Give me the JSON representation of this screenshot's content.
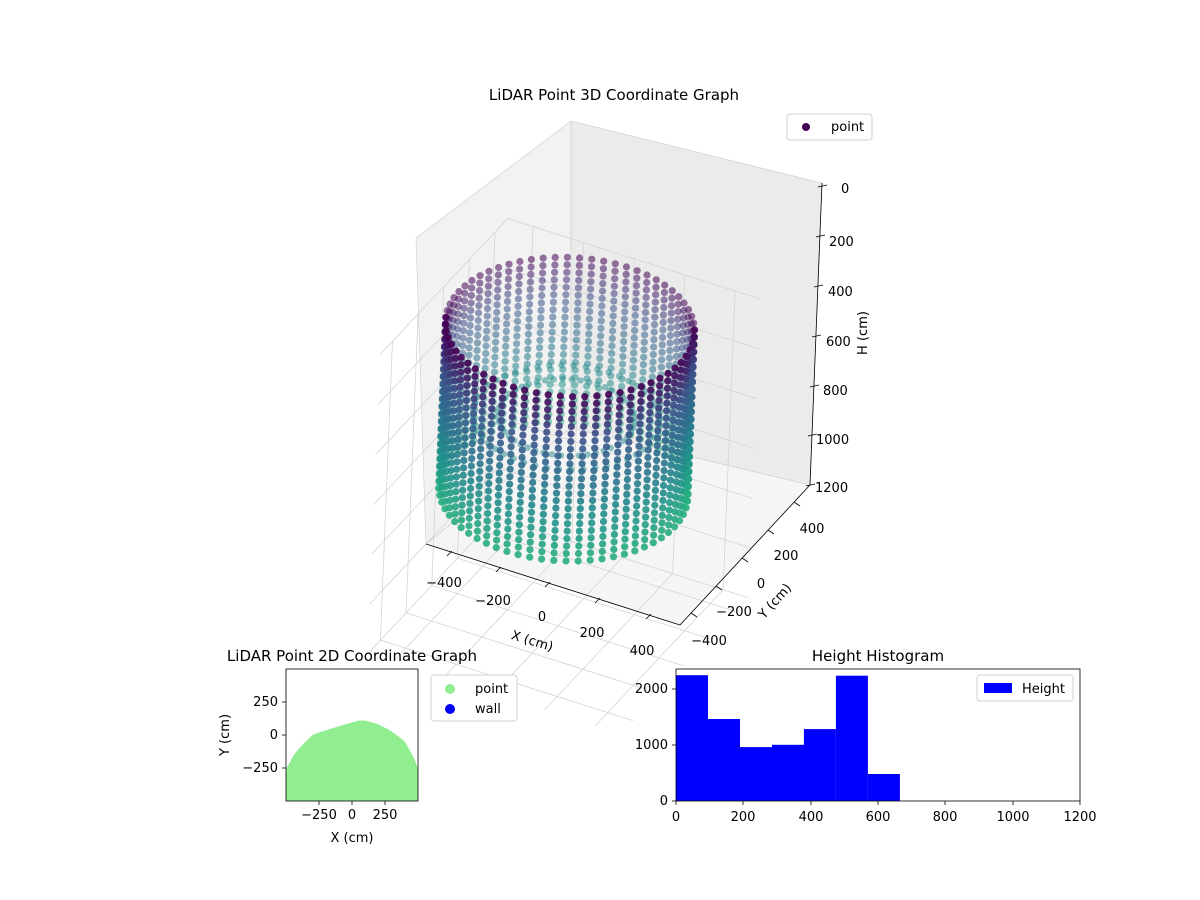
{
  "chart_data": [
    {
      "type": "scatter",
      "projection": "3d",
      "title": "LiDAR Point 3D Coordinate Graph",
      "xlabel": "X (cm)",
      "ylabel": "Y (cm)",
      "zlabel": "H (cm)",
      "xlim": [
        -500,
        500
      ],
      "ylim": [
        -500,
        500
      ],
      "zlim": [
        0,
        1200
      ],
      "z_inverted": true,
      "x_ticks": [
        "−400",
        "−200",
        "0",
        "200",
        "400"
      ],
      "y_ticks": [
        "−400",
        "−200",
        "0",
        "200",
        "400"
      ],
      "z_ticks": [
        "0",
        "200",
        "400",
        "600",
        "800",
        "1000",
        "1200"
      ],
      "legend": [
        "point"
      ],
      "legend_position": "top-right",
      "grid": true,
      "colormap": "viridis",
      "series": [
        {
          "name": "point",
          "shape": "cylindrical wall of points",
          "center": [
            0,
            0
          ],
          "radius": 440,
          "height_range": [
            0,
            660
          ],
          "color": "#440154"
        }
      ]
    },
    {
      "type": "scatter",
      "title": "LiDAR Point 2D Coordinate Graph",
      "xlabel": "X (cm)",
      "ylabel": "Y (cm)",
      "xlim": [
        -500,
        500
      ],
      "ylim": [
        -500,
        500
      ],
      "x_ticks": [
        "−250",
        "0",
        "250"
      ],
      "y_ticks": [
        "250",
        "0",
        "−250"
      ],
      "legend": [
        "point",
        "wall"
      ],
      "legend_position": "right",
      "series": [
        {
          "name": "point",
          "color": "#90ee90",
          "outline": [
            [
              -500,
              -260
            ],
            [
              -440,
              -150
            ],
            [
              -400,
              -100
            ],
            [
              -340,
              -40
            ],
            [
              -300,
              0
            ],
            [
              -250,
              20
            ],
            [
              -150,
              50
            ],
            [
              -50,
              80
            ],
            [
              50,
              110
            ],
            [
              100,
              110
            ],
            [
              200,
              80
            ],
            [
              280,
              40
            ],
            [
              350,
              -10
            ],
            [
              400,
              -50
            ],
            [
              440,
              -120
            ],
            [
              480,
              -200
            ],
            [
              500,
              -260
            ]
          ]
        },
        {
          "name": "wall",
          "color": "#0000ff",
          "points": []
        }
      ]
    },
    {
      "type": "bar",
      "subtype": "histogram",
      "title": "Height Histogram",
      "xlim": [
        0,
        1200
      ],
      "ylim": [
        0,
        2350
      ],
      "x_ticks": [
        "0",
        "200",
        "400",
        "600",
        "800",
        "1000",
        "1200"
      ],
      "y_ticks": [
        "0",
        "1000",
        "2000"
      ],
      "legend": [
        "Height"
      ],
      "legend_position": "top-right",
      "bin_edges": [
        0,
        95,
        190,
        285,
        380,
        475,
        570,
        665
      ],
      "series": [
        {
          "name": "Height",
          "color": "#0000ff",
          "values": [
            2240,
            1460,
            960,
            1000,
            1280,
            2230,
            480
          ]
        }
      ]
    }
  ]
}
